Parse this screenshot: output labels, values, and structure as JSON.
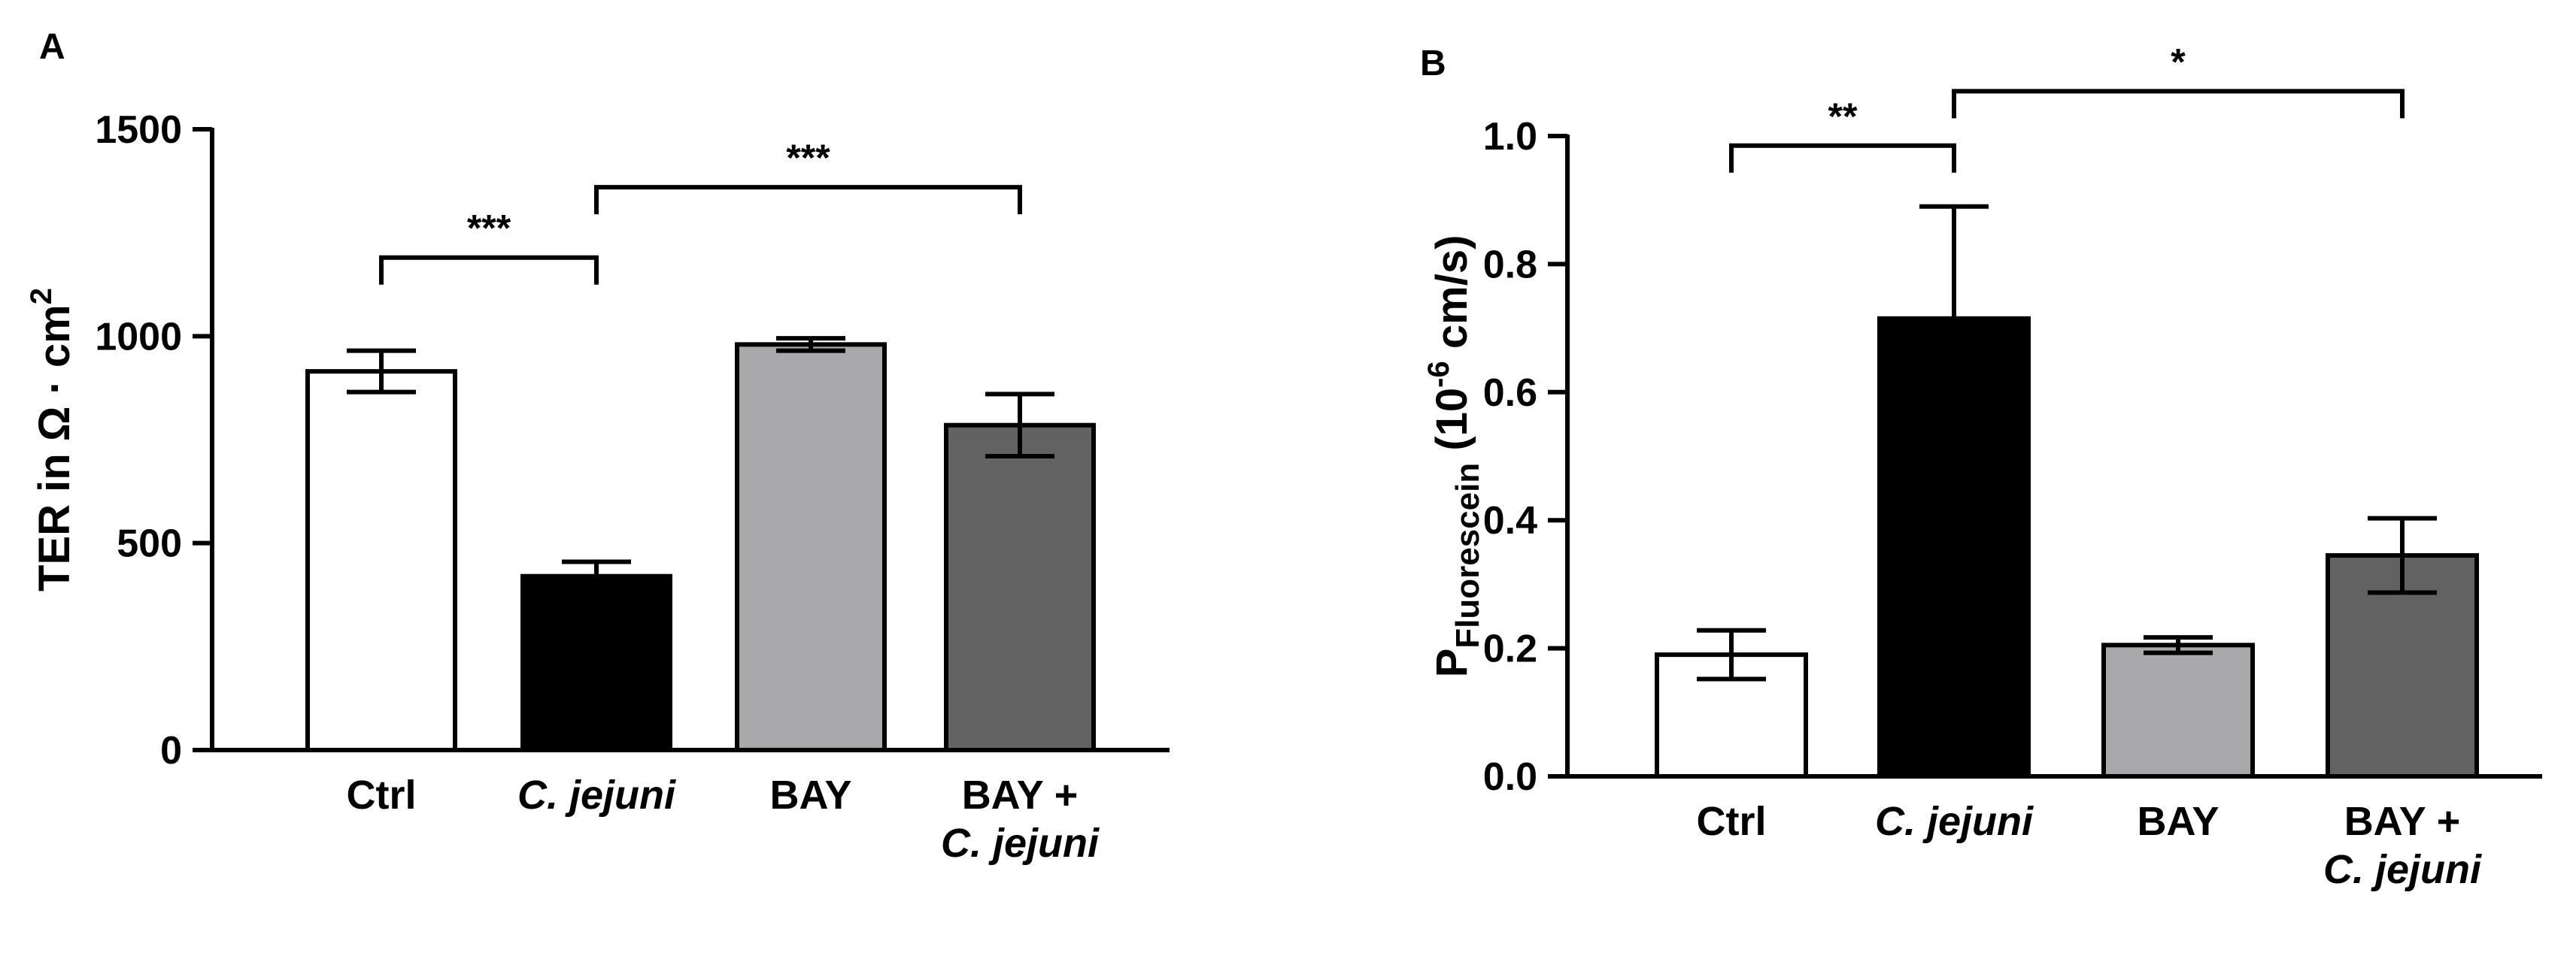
{
  "chart_data": [
    {
      "panel": "A",
      "type": "bar",
      "categories": [
        {
          "lines": [
            "Ctrl"
          ],
          "italic": [
            false
          ]
        },
        {
          "lines": [
            "C. jejuni"
          ],
          "italic": [
            true
          ]
        },
        {
          "lines": [
            "BAY"
          ],
          "italic": [
            false
          ]
        },
        {
          "lines": [
            "BAY +",
            "C. jejuni"
          ],
          "italic": [
            false,
            true
          ]
        }
      ],
      "values": [
        915,
        420,
        980,
        785
      ],
      "errors": [
        50,
        35,
        15,
        75
      ],
      "colors": [
        "#ffffff",
        "#000000",
        "#a8a8ab",
        "#626262"
      ],
      "ylabel": {
        "main": "TER in Ω · cm",
        "sup": "2"
      },
      "ylim": [
        0,
        1500
      ],
      "yticks": [
        "0",
        "500",
        "1000",
        "1500"
      ],
      "ytick_values": [
        0,
        500,
        1000,
        1500
      ],
      "significance": [
        {
          "from": 0,
          "to": 1,
          "label": "***",
          "y": 1190
        },
        {
          "from": 1,
          "to": 3,
          "label": "***",
          "y": 1360
        }
      ]
    },
    {
      "panel": "B",
      "type": "bar",
      "categories": [
        {
          "lines": [
            "Ctrl"
          ],
          "italic": [
            false
          ]
        },
        {
          "lines": [
            "C. jejuni"
          ],
          "italic": [
            true
          ]
        },
        {
          "lines": [
            "BAY"
          ],
          "italic": [
            false
          ]
        },
        {
          "lines": [
            "BAY +",
            "C. jejuni"
          ],
          "italic": [
            false,
            true
          ]
        }
      ],
      "values": [
        0.19,
        0.715,
        0.205,
        0.345
      ],
      "errors": [
        0.038,
        0.175,
        0.012,
        0.058
      ],
      "colors": [
        "#ffffff",
        "#000000",
        "#a8a8ab",
        "#626262"
      ],
      "ylabel": {
        "main": "P",
        "sub": "Fluorescein",
        "rest": " (10",
        "sup": "-6",
        "tail": " cm/s)"
      },
      "ylim": [
        0,
        1.0
      ],
      "yticks": [
        "0.0",
        "0.2",
        "0.4",
        "0.6",
        "0.8",
        "1.0"
      ],
      "ytick_values": [
        0,
        0.2,
        0.4,
        0.6,
        0.8,
        1.0
      ],
      "significance": [
        {
          "from": 0,
          "to": 1,
          "label": "**",
          "y": 0.985
        },
        {
          "from": 1,
          "to": 3,
          "label": "*",
          "y": 1.07
        }
      ]
    }
  ]
}
